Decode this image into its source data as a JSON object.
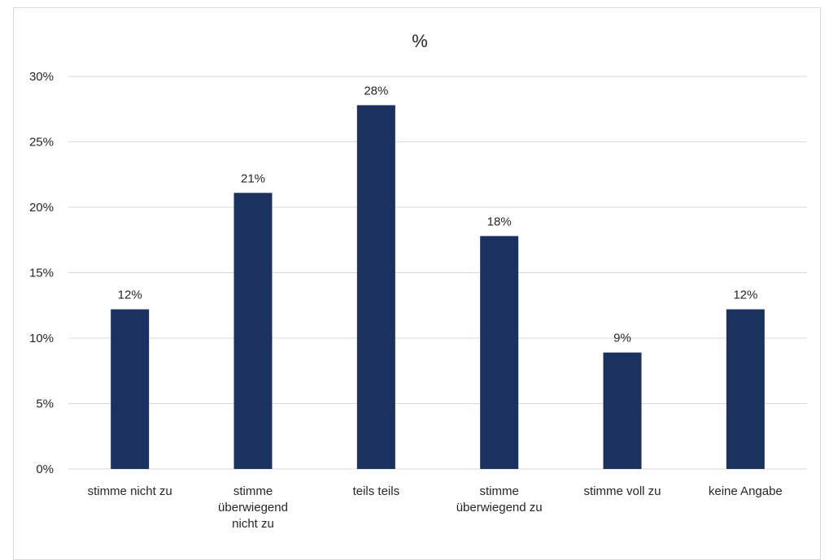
{
  "chart_data": {
    "type": "bar",
    "title": "%",
    "categories": [
      [
        "stimme nicht zu"
      ],
      [
        "stimme",
        "überwiegend",
        "nicht zu"
      ],
      [
        "teils teils"
      ],
      [
        "stimme",
        "überwiegend zu"
      ],
      [
        "stimme voll zu"
      ],
      [
        "keine Angabe"
      ]
    ],
    "values": [
      12.2,
      21.1,
      27.8,
      17.8,
      8.9,
      12.2
    ],
    "data_labels": [
      "12%",
      "21%",
      "28%",
      "18%",
      "9%",
      "12%"
    ],
    "ylim": [
      0,
      30
    ],
    "y_ticks": [
      0,
      5,
      10,
      15,
      20,
      25,
      30
    ],
    "y_tick_labels": [
      "0%",
      "5%",
      "10%",
      "15%",
      "20%",
      "25%",
      "30%"
    ],
    "grid": true,
    "bar_color": "#1b3261",
    "grid_color": "#d9d9d9"
  }
}
